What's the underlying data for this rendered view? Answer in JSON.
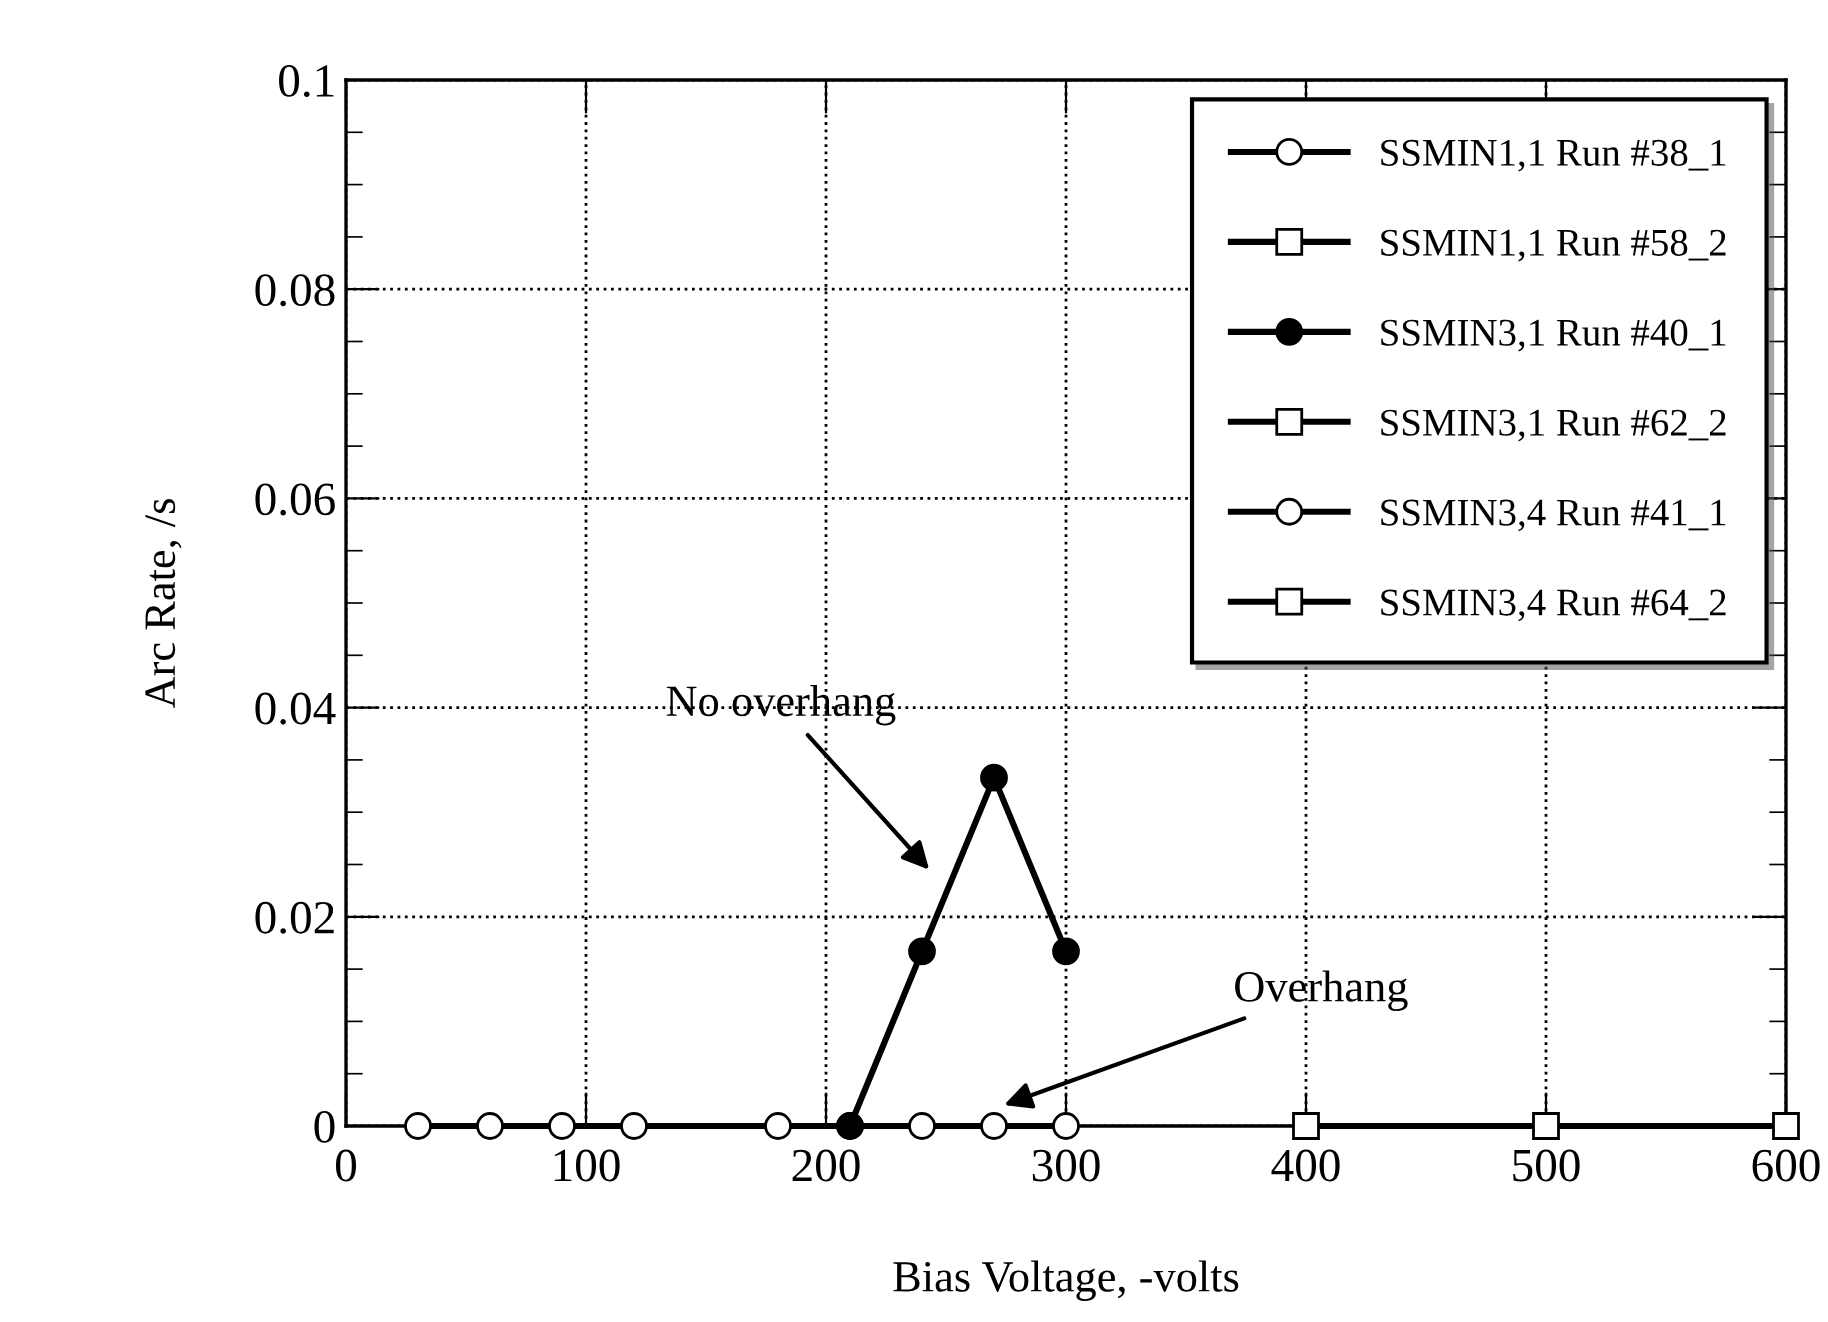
{
  "chart_data": {
    "type": "line",
    "xlabel": "Bias Voltage, -volts",
    "ylabel": "Arc Rate, /s",
    "xlim": [
      0,
      600
    ],
    "xticks": [
      0,
      100,
      200,
      300,
      400,
      500,
      600
    ],
    "ylim": [
      0,
      0.1
    ],
    "yticks": [
      0,
      0.02,
      0.04,
      0.06,
      0.08,
      0.1
    ],
    "grid": true,
    "legend": "top right",
    "line_style": "solid",
    "series": [
      {
        "name": "SSMIN1,1 Run #38_1",
        "color": "#000000",
        "marker": "circle",
        "x": [
          30,
          60,
          90,
          120,
          180,
          210,
          240,
          270,
          300
        ],
        "values": [
          0,
          0,
          0,
          0,
          0,
          0,
          0,
          0,
          0
        ]
      },
      {
        "name": "SSMIN1,1 Run #58_2",
        "color": "#000000",
        "marker": "square",
        "x": [
          400,
          500,
          600
        ],
        "values": [
          0,
          0,
          0
        ]
      },
      {
        "name": "SSMIN3,1 Run #40_1",
        "color": "#000000",
        "marker": "circle_filled",
        "x": [
          210,
          240,
          270,
          300
        ],
        "values": [
          0,
          0.0167,
          0.0333,
          0.0167
        ]
      },
      {
        "name": "SSMIN3,1 Run #62_2",
        "color": "#000000",
        "marker": "square"
      },
      {
        "name": "SSMIN3,4 Run #41_1",
        "color": "#000000",
        "marker": "circle"
      },
      {
        "name": "SSMIN3,4 Run #64_2",
        "color": "#000000",
        "marker": "square"
      }
    ],
    "annotations": [
      "No overhang",
      "Overhang"
    ]
  }
}
